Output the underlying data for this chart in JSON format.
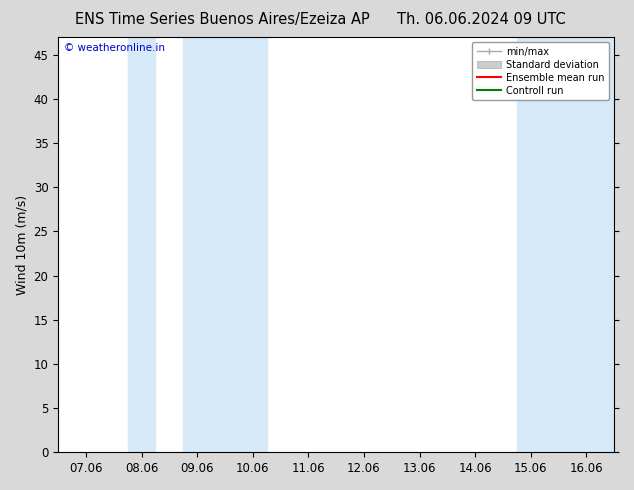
{
  "title_left": "ENS Time Series Buenos Aires/Ezeiza AP",
  "title_right": "Th. 06.06.2024 09 UTC",
  "ylabel": "Wind 10m (m/s)",
  "watermark": "© weatheronline.in",
  "watermark_color": "#0000cc",
  "background_color": "#d9d9d9",
  "plot_bg_color": "#ffffff",
  "shaded_band_color": "#d6e9f8",
  "ylim": [
    0,
    47
  ],
  "yticks": [
    0,
    5,
    10,
    15,
    20,
    25,
    30,
    35,
    40,
    45
  ],
  "xtick_labels": [
    "07.06",
    "08.06",
    "09.06",
    "10.06",
    "11.06",
    "12.06",
    "13.06",
    "14.06",
    "15.06",
    "16.06"
  ],
  "xtick_positions": [
    0,
    1,
    2,
    3,
    4,
    5,
    6,
    7,
    8,
    9
  ],
  "xlim": [
    -0.5,
    9.5
  ],
  "shaded_bands": [
    {
      "x_start": 0.75,
      "x_end": 1.25
    },
    {
      "x_start": 1.75,
      "x_end": 3.25
    },
    {
      "x_start": 7.75,
      "x_end": 9.5
    }
  ],
  "legend_items": [
    {
      "label": "min/max",
      "color": "#aaaaaa",
      "lw": 1.5,
      "style": "minmax"
    },
    {
      "label": "Standard deviation",
      "color": "#cccccc",
      "lw": 4,
      "style": "band"
    },
    {
      "label": "Ensemble mean run",
      "color": "#ff0000",
      "lw": 1.5,
      "style": "line"
    },
    {
      "label": "Controll run",
      "color": "#008000",
      "lw": 1.5,
      "style": "line"
    }
  ],
  "tick_label_fontsize": 8.5,
  "axis_label_fontsize": 9,
  "title_fontsize": 10.5
}
